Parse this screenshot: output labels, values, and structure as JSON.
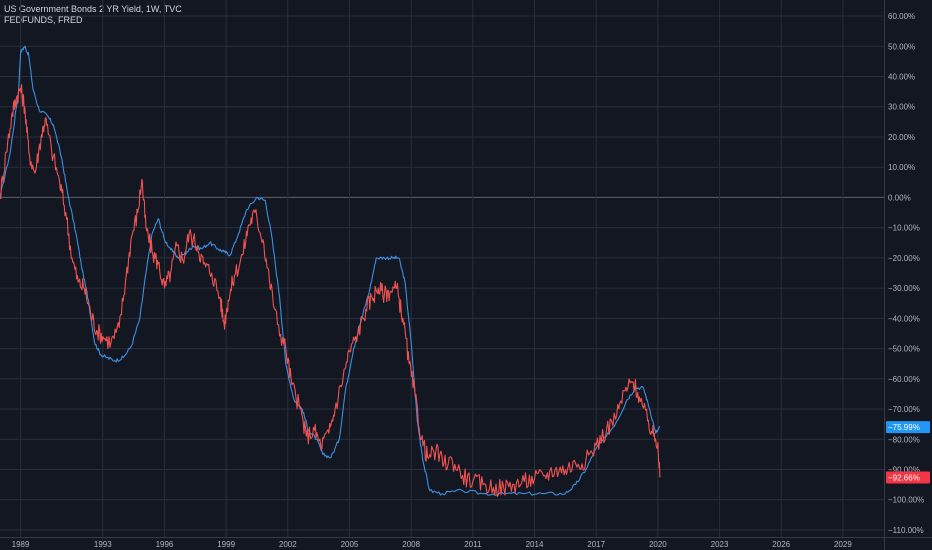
{
  "legend": {
    "line1": "US Government Bonds 2 YR Yield, 1W, TVC",
    "line2": "FEDFUNDS, FRED"
  },
  "colors": {
    "background": "#131722",
    "grid": "#2a2e39",
    "zero_line": "#5d606b",
    "axis_text": "#b2b5be",
    "us02y": "#ef5350",
    "fedfunds": "#3d8fe0",
    "fedfunds_badge": "#2196f3",
    "us02y_badge": "#f23645"
  },
  "chart_data": {
    "type": "line",
    "y_scale": "percent",
    "ylim": [
      -112,
      62
    ],
    "xlim": [
      1988.0,
      2031.0
    ],
    "yticks": [
      60,
      50,
      40,
      30,
      20,
      10,
      0,
      -10,
      -20,
      -30,
      -40,
      -50,
      -60,
      -70,
      -80,
      -90,
      -100,
      -110
    ],
    "ytick_labels": [
      "60.00%",
      "50.00%",
      "40.00%",
      "30.00%",
      "20.00%",
      "10.00%",
      "0.00%",
      "−10.00%",
      "−20.00%",
      "−30.00%",
      "−40.00%",
      "−50.00%",
      "−60.00%",
      "−70.00%",
      "−80.00%",
      "−90.00%",
      "−100.00%",
      "−110.00%"
    ],
    "xticks": [
      1989,
      1993,
      1996,
      1999,
      2002,
      2005,
      2008,
      2011,
      2014,
      2017,
      2020,
      2023,
      2026,
      2029
    ],
    "xtick_labels": [
      "1989",
      "1993",
      "1996",
      "1999",
      "2002",
      "2005",
      "2008",
      "2011",
      "2014",
      "2017",
      "2020",
      "2023",
      "2026",
      "2029"
    ],
    "grid": true,
    "legend_position": "top-left",
    "series": [
      {
        "name": "FEDFUNDS, FRED",
        "last_value_label": "−75.99%",
        "points": [
          [
            1988.0,
            0
          ],
          [
            1988.5,
            15
          ],
          [
            1988.9,
            35
          ],
          [
            1989.0,
            48
          ],
          [
            1989.2,
            50
          ],
          [
            1989.4,
            47
          ],
          [
            1989.6,
            36
          ],
          [
            1989.9,
            29
          ],
          [
            1990.3,
            27
          ],
          [
            1990.6,
            24
          ],
          [
            1991.0,
            13
          ],
          [
            1991.3,
            1
          ],
          [
            1991.7,
            -12
          ],
          [
            1992.0,
            -24
          ],
          [
            1992.3,
            -34
          ],
          [
            1992.6,
            -48
          ],
          [
            1992.9,
            -52
          ],
          [
            1993.2,
            -53
          ],
          [
            1993.6,
            -54
          ],
          [
            1994.0,
            -53
          ],
          [
            1994.4,
            -49
          ],
          [
            1994.8,
            -40
          ],
          [
            1995.1,
            -25
          ],
          [
            1995.4,
            -12
          ],
          [
            1995.7,
            -7
          ],
          [
            1996.0,
            -14
          ],
          [
            1996.4,
            -18
          ],
          [
            1996.7,
            -20
          ],
          [
            1997.1,
            -18
          ],
          [
            1997.4,
            -16
          ],
          [
            1997.8,
            -17
          ],
          [
            1998.2,
            -15
          ],
          [
            1998.6,
            -17
          ],
          [
            1998.9,
            -18
          ],
          [
            1999.2,
            -19
          ],
          [
            1999.6,
            -12
          ],
          [
            2000.0,
            -4
          ],
          [
            2000.5,
            0
          ],
          [
            2000.9,
            -1
          ],
          [
            2001.2,
            -12
          ],
          [
            2001.6,
            -33
          ],
          [
            2001.9,
            -55
          ],
          [
            2002.3,
            -67
          ],
          [
            2002.7,
            -70
          ],
          [
            2003.0,
            -77
          ],
          [
            2003.4,
            -80
          ],
          [
            2003.7,
            -85
          ],
          [
            2004.1,
            -86
          ],
          [
            2004.5,
            -80
          ],
          [
            2004.8,
            -64
          ],
          [
            2005.2,
            -50
          ],
          [
            2005.6,
            -40
          ],
          [
            2006.0,
            -30
          ],
          [
            2006.3,
            -20
          ],
          [
            2006.7,
            -20
          ],
          [
            2007.1,
            -20
          ],
          [
            2007.4,
            -20
          ],
          [
            2007.7,
            -28
          ],
          [
            2008.0,
            -48
          ],
          [
            2008.3,
            -74
          ],
          [
            2008.6,
            -88
          ],
          [
            2008.9,
            -97
          ],
          [
            2009.5,
            -98
          ],
          [
            2010.5,
            -97
          ],
          [
            2011.5,
            -98
          ],
          [
            2012.5,
            -98
          ],
          [
            2013.5,
            -98
          ],
          [
            2014.5,
            -98
          ],
          [
            2015.5,
            -98
          ],
          [
            2016.0,
            -95
          ],
          [
            2016.5,
            -90
          ],
          [
            2017.0,
            -83
          ],
          [
            2017.5,
            -79
          ],
          [
            2018.0,
            -74
          ],
          [
            2018.5,
            -67
          ],
          [
            2018.9,
            -63
          ],
          [
            2019.3,
            -63
          ],
          [
            2019.6,
            -70
          ],
          [
            2019.9,
            -78
          ],
          [
            2020.1,
            -76
          ]
        ]
      },
      {
        "name": "US Government Bonds 2 YR Yield, 1W, TVC",
        "last_value_label": "−92.66%",
        "points": [
          [
            1988.0,
            0
          ],
          [
            1988.3,
            15
          ],
          [
            1988.6,
            28
          ],
          [
            1988.8,
            33
          ],
          [
            1989.0,
            36
          ],
          [
            1989.2,
            30
          ],
          [
            1989.4,
            15
          ],
          [
            1989.7,
            8
          ],
          [
            1990.0,
            20
          ],
          [
            1990.2,
            26
          ],
          [
            1990.5,
            16
          ],
          [
            1990.9,
            5
          ],
          [
            1991.2,
            -5
          ],
          [
            1991.5,
            -20
          ],
          [
            1991.8,
            -28
          ],
          [
            1992.1,
            -30
          ],
          [
            1992.4,
            -38
          ],
          [
            1992.7,
            -44
          ],
          [
            1993.0,
            -46
          ],
          [
            1993.4,
            -48
          ],
          [
            1993.8,
            -43
          ],
          [
            1994.1,
            -28
          ],
          [
            1994.4,
            -13
          ],
          [
            1994.7,
            -5
          ],
          [
            1994.9,
            6
          ],
          [
            1995.1,
            -10
          ],
          [
            1995.4,
            -18
          ],
          [
            1995.7,
            -22
          ],
          [
            1996.0,
            -30
          ],
          [
            1996.3,
            -25
          ],
          [
            1996.6,
            -16
          ],
          [
            1996.9,
            -21
          ],
          [
            1997.2,
            -12
          ],
          [
            1997.6,
            -16
          ],
          [
            1997.9,
            -22
          ],
          [
            1998.3,
            -25
          ],
          [
            1998.7,
            -33
          ],
          [
            1998.9,
            -42
          ],
          [
            1999.1,
            -34
          ],
          [
            1999.4,
            -26
          ],
          [
            1999.8,
            -19
          ],
          [
            2000.1,
            -9
          ],
          [
            2000.4,
            -5
          ],
          [
            2000.8,
            -14
          ],
          [
            2001.1,
            -27
          ],
          [
            2001.5,
            -42
          ],
          [
            2001.9,
            -50
          ],
          [
            2002.2,
            -62
          ],
          [
            2002.6,
            -70
          ],
          [
            2002.9,
            -79
          ],
          [
            2003.3,
            -77
          ],
          [
            2003.6,
            -82
          ],
          [
            2004.0,
            -78
          ],
          [
            2004.3,
            -70
          ],
          [
            2004.7,
            -59
          ],
          [
            2005.0,
            -51
          ],
          [
            2005.4,
            -45
          ],
          [
            2005.8,
            -37
          ],
          [
            2006.1,
            -33
          ],
          [
            2006.4,
            -30
          ],
          [
            2006.7,
            -32
          ],
          [
            2007.0,
            -31
          ],
          [
            2007.3,
            -30
          ],
          [
            2007.6,
            -40
          ],
          [
            2007.9,
            -55
          ],
          [
            2008.2,
            -66
          ],
          [
            2008.5,
            -80
          ],
          [
            2008.8,
            -86
          ],
          [
            2009.2,
            -84
          ],
          [
            2009.6,
            -88
          ],
          [
            2010.0,
            -87
          ],
          [
            2010.5,
            -92
          ],
          [
            2011.0,
            -94
          ],
          [
            2011.5,
            -95
          ],
          [
            2012.0,
            -96
          ],
          [
            2012.5,
            -96
          ],
          [
            2013.0,
            -95
          ],
          [
            2013.5,
            -94
          ],
          [
            2014.0,
            -93
          ],
          [
            2014.5,
            -92
          ],
          [
            2015.0,
            -90
          ],
          [
            2015.5,
            -90
          ],
          [
            2016.0,
            -88
          ],
          [
            2016.5,
            -87
          ],
          [
            2017.0,
            -82
          ],
          [
            2017.5,
            -77
          ],
          [
            2018.0,
            -72
          ],
          [
            2018.4,
            -64
          ],
          [
            2018.8,
            -61
          ],
          [
            2019.1,
            -66
          ],
          [
            2019.5,
            -74
          ],
          [
            2019.8,
            -79
          ],
          [
            2020.0,
            -81
          ],
          [
            2020.1,
            -92.66
          ]
        ]
      }
    ]
  }
}
